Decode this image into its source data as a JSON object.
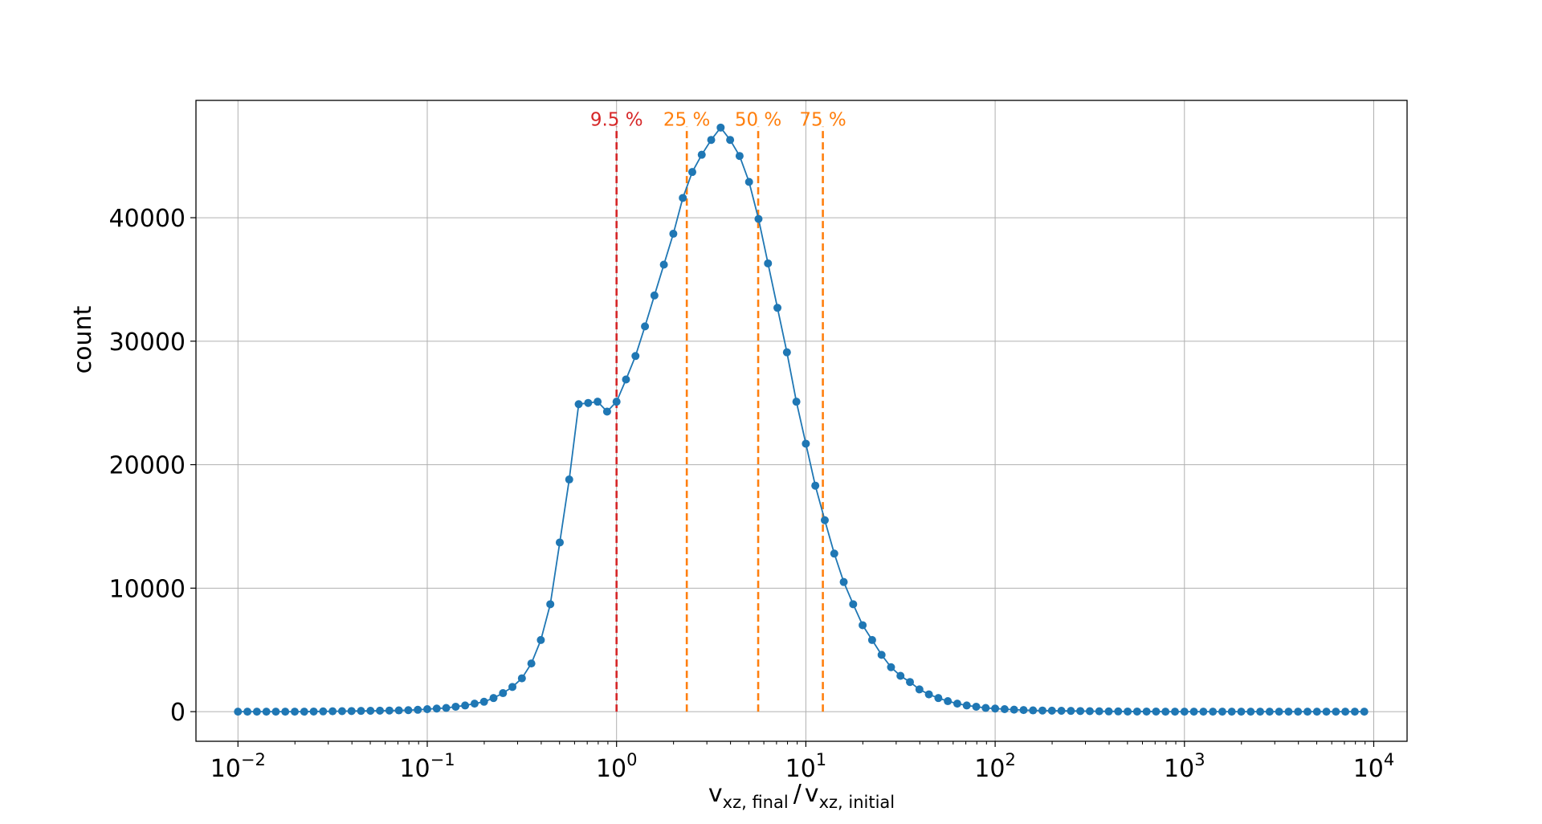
{
  "chart_data": {
    "type": "line",
    "title": "",
    "xlabel_main": "v",
    "xlabel_sub1": "xz, final",
    "xlabel_slash": "/",
    "xlabel_sub2": "xz, initial",
    "ylabel": "count",
    "xscale": "log",
    "xlim": [
      0.006,
      15000
    ],
    "ylim": [
      -2400,
      49500
    ],
    "grid": true,
    "x_ticks": [
      {
        "base": "10",
        "exp": "−2",
        "value": 0.01
      },
      {
        "base": "10",
        "exp": "−1",
        "value": 0.1
      },
      {
        "base": "10",
        "exp": "0",
        "value": 1
      },
      {
        "base": "10",
        "exp": "1",
        "value": 10
      },
      {
        "base": "10",
        "exp": "2",
        "value": 100
      },
      {
        "base": "10",
        "exp": "3",
        "value": 1000
      },
      {
        "base": "10",
        "exp": "4",
        "value": 10000
      }
    ],
    "y_ticks": [
      {
        "label": "0",
        "value": 0
      },
      {
        "label": "10000",
        "value": 10000
      },
      {
        "label": "20000",
        "value": 20000
      },
      {
        "label": "30000",
        "value": 30000
      },
      {
        "label": "40000",
        "value": 40000
      }
    ],
    "series": [
      {
        "color": "#1f77b4",
        "marker": "circle",
        "x": [
          0.01,
          0.01122,
          0.01259,
          0.01413,
          0.01585,
          0.01778,
          0.01995,
          0.02239,
          0.02512,
          0.02818,
          0.03162,
          0.03548,
          0.03981,
          0.04467,
          0.05012,
          0.05623,
          0.0631,
          0.07079,
          0.07943,
          0.08913,
          0.1,
          0.1122,
          0.1259,
          0.1413,
          0.1585,
          0.1778,
          0.1995,
          0.2239,
          0.2512,
          0.2818,
          0.3162,
          0.3548,
          0.3981,
          0.4467,
          0.5012,
          0.5623,
          0.631,
          0.7079,
          0.7943,
          0.8913,
          1.0,
          1.122,
          1.259,
          1.413,
          1.585,
          1.778,
          1.995,
          2.239,
          2.512,
          2.818,
          3.162,
          3.548,
          3.981,
          4.467,
          5.012,
          5.623,
          6.31,
          7.079,
          7.943,
          8.913,
          10.0,
          11.22,
          12.59,
          14.13,
          15.85,
          17.78,
          19.95,
          22.39,
          25.12,
          28.18,
          31.62,
          35.48,
          39.81,
          44.67,
          50.12,
          56.23,
          63.1,
          70.79,
          79.43,
          89.13,
          100.0,
          112.2,
          125.9,
          141.3,
          158.5,
          177.8,
          199.5,
          223.9,
          251.2,
          281.8,
          316.2,
          354.8,
          398.1,
          446.7,
          501.2,
          562.3,
          631.0,
          707.9,
          794.3,
          891.3,
          1000,
          1122,
          1259,
          1413,
          1585,
          1778,
          1995,
          2239,
          2512,
          2818,
          3162,
          3548,
          3981,
          4467,
          5012,
          5623,
          6310,
          7079,
          7943,
          8913
        ],
        "y": [
          0,
          0,
          0,
          0,
          0,
          0,
          0,
          0,
          10,
          20,
          30,
          40,
          50,
          60,
          70,
          80,
          90,
          100,
          120,
          150,
          200,
          250,
          300,
          400,
          500,
          650,
          800,
          1100,
          1500,
          2000,
          2700,
          3900,
          5800,
          8700,
          13700,
          18800,
          24900,
          25000,
          25100,
          24300,
          25100,
          26900,
          28800,
          31200,
          33700,
          36200,
          38700,
          41600,
          43700,
          45100,
          46300,
          47300,
          46300,
          45000,
          42900,
          39900,
          36300,
          32700,
          29100,
          25100,
          21700,
          18300,
          15500,
          12800,
          10500,
          8700,
          7000,
          5800,
          4600,
          3600,
          2900,
          2400,
          1800,
          1400,
          1100,
          850,
          650,
          500,
          400,
          300,
          250,
          200,
          160,
          130,
          100,
          90,
          80,
          70,
          60,
          50,
          40,
          30,
          20,
          20,
          10,
          10,
          10,
          10,
          0,
          0,
          0,
          0,
          0,
          0,
          0,
          0,
          0,
          0,
          0,
          0,
          0,
          0,
          0,
          0,
          0,
          0,
          0,
          0,
          0,
          0
        ]
      }
    ],
    "annotations": [
      {
        "label": "9.5 %",
        "x": 1.0,
        "color": "#d62728"
      },
      {
        "label": "25 %",
        "x": 2.35,
        "color": "#ff7f0e"
      },
      {
        "label": "50 %",
        "x": 5.6,
        "color": "#ff7f0e"
      },
      {
        "label": "75 %",
        "x": 12.3,
        "color": "#ff7f0e"
      }
    ],
    "annotation_label_y": 47900
  }
}
